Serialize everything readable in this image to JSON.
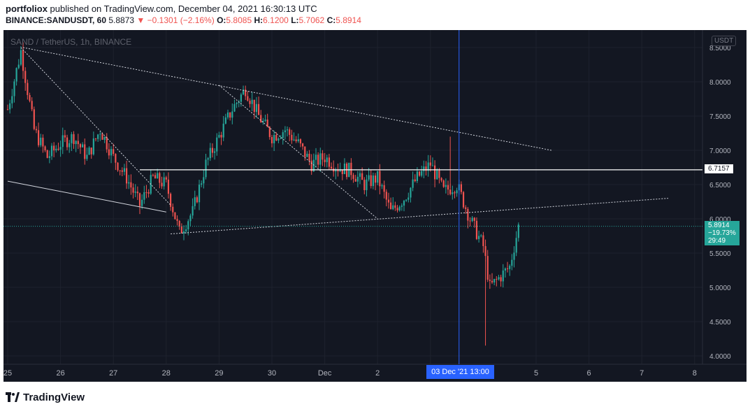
{
  "header": {
    "publisher_line": "portfoliox published on TradingView.com, December 04, 2021 16:30:13 UTC",
    "publisher": "portfoliox",
    "publisher_suffix": " published on TradingView.com, December 04, 2021 16:30:13 UTC",
    "symbol": "BINANCE:SANDUSDT, 60",
    "last": "5.8873",
    "change": "−0.1301 (−2.16%)",
    "open_label": "O:",
    "open": "5.8085",
    "high_label": "H:",
    "high": "6.1200",
    "low_label": "L:",
    "low": "5.7062",
    "close_label": "C:",
    "close": "5.8914"
  },
  "chart": {
    "title": "SAND / TetherUS, 1h, BINANCE",
    "currency_badge": "USDT",
    "x_axis_labels": [
      "25",
      "26",
      "27",
      "28",
      "29",
      "30",
      "Dec",
      "2",
      "3",
      "5",
      "6",
      "7",
      "8"
    ],
    "y_axis_labels": [
      "8.5000",
      "8.0000",
      "7.5000",
      "7.0000",
      "6.5000",
      "6.0000",
      "5.5000",
      "5.0000",
      "4.5000",
      "4.0000"
    ],
    "horizontal_level": "6.7157",
    "current_price": {
      "price": "5.8914",
      "change_pct": "−19.73%",
      "countdown": "29:49"
    },
    "crosshair_time": "03 Dec '21   13:00",
    "colors": {
      "up": "#26a69a",
      "down": "#ef5350",
      "background": "#131722",
      "crosshair": "#2962ff"
    }
  },
  "chart_data": {
    "type": "candlestick",
    "title": "SAND / TetherUS, 1h, BINANCE",
    "y_range": [
      3.95,
      8.55
    ],
    "x_range": [
      "2021-11-25",
      "2021-12-08"
    ],
    "summary": {
      "open": 5.8085,
      "high": 6.12,
      "low": 5.7062,
      "close": 5.8914,
      "change": -0.1301,
      "change_pct": -2.16
    },
    "price_path": [
      [
        "2021-11-25T00:00",
        7.6
      ],
      [
        "2021-11-25T06:00",
        8.45
      ],
      [
        "2021-11-25T12:00",
        7.3
      ],
      [
        "2021-11-25T18:00",
        6.9
      ],
      [
        "2021-11-26T00:00",
        7.1
      ],
      [
        "2021-11-26T06:00",
        7.2
      ],
      [
        "2021-11-26T12:00",
        6.9
      ],
      [
        "2021-11-26T18:00",
        7.3
      ],
      [
        "2021-11-27T00:00",
        6.9
      ],
      [
        "2021-11-27T06:00",
        6.6
      ],
      [
        "2021-11-27T12:00",
        6.2
      ],
      [
        "2021-11-27T18:00",
        6.6
      ],
      [
        "2021-11-28T00:00",
        6.5
      ],
      [
        "2021-11-28T06:00",
        5.8
      ],
      [
        "2021-11-28T12:00",
        6.1
      ],
      [
        "2021-11-28T18:00",
        6.8
      ],
      [
        "2021-11-29T00:00",
        7.2
      ],
      [
        "2021-11-29T06:00",
        7.6
      ],
      [
        "2021-11-29T12:00",
        7.9
      ],
      [
        "2021-11-29T18:00",
        7.5
      ],
      [
        "2021-11-30T00:00",
        7.2
      ],
      [
        "2021-11-30T06:00",
        7.3
      ],
      [
        "2021-11-30T12:00",
        7.1
      ],
      [
        "2021-11-30T18:00",
        6.8
      ],
      [
        "2021-12-01T00:00",
        6.9
      ],
      [
        "2021-12-01T06:00",
        6.75
      ],
      [
        "2021-12-01T12:00",
        6.7
      ],
      [
        "2021-12-01T18:00",
        6.5
      ],
      [
        "2021-12-02T00:00",
        6.6
      ],
      [
        "2021-12-02T06:00",
        6.1
      ],
      [
        "2021-12-02T12:00",
        6.3
      ],
      [
        "2021-12-02T18:00",
        6.6
      ],
      [
        "2021-12-03T00:00",
        6.8
      ],
      [
        "2021-12-03T06:00",
        6.4
      ],
      [
        "2021-12-03T12:00",
        6.5
      ],
      [
        "2021-12-03T18:00",
        6.0
      ],
      [
        "2021-12-04T00:00",
        5.6
      ],
      [
        "2021-12-04T03:00",
        5.0
      ],
      [
        "2021-12-04T06:00",
        5.1
      ],
      [
        "2021-12-04T12:00",
        5.3
      ],
      [
        "2021-12-04T16:00",
        5.89
      ]
    ],
    "wick_extremes": [
      {
        "t": "2021-12-03T09:00",
        "high": 7.2
      },
      {
        "t": "2021-12-04T01:00",
        "low": 4.15
      }
    ],
    "trendlines": [
      [
        [
          "2021-11-25T07:00",
          8.5
        ],
        [
          "2021-12-05T07:00",
          7.0
        ]
      ],
      [
        [
          "2021-11-29T00:00",
          7.95
        ],
        [
          "2021-12-02T00:00",
          6.0
        ]
      ],
      [
        [
          "2021-11-25T06:00",
          8.5
        ],
        [
          "2021-11-28T02:00",
          6.2
        ]
      ],
      [
        [
          "2021-11-28T02:00",
          5.78
        ],
        [
          "2021-12-07T12:00",
          6.3
        ]
      ],
      [
        [
          "2021-11-25T00:00",
          6.55
        ],
        [
          "2021-11-28T00:00",
          6.1
        ]
      ]
    ],
    "horizontal_levels": [
      6.7157
    ],
    "current_price": 5.8914
  }
}
